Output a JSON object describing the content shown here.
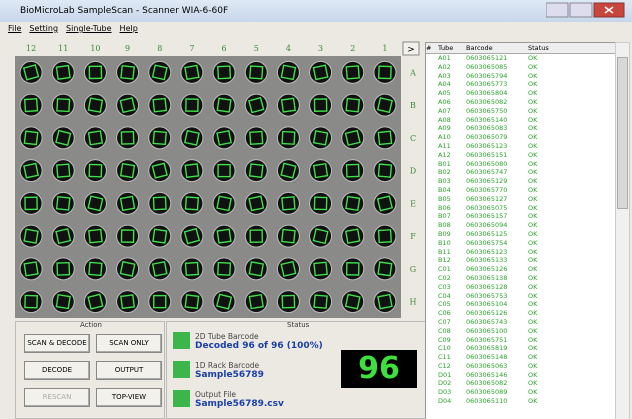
{
  "window": {
    "title": "BioMicroLab SampleScan - Scanner WIA-6-60F",
    "menu": [
      "File",
      "Setting",
      "Single-Tube",
      "Help"
    ]
  },
  "rack": {
    "columns": [
      "12",
      "11",
      "10",
      "9",
      "8",
      "7",
      "6",
      "5",
      "4",
      "3",
      "2",
      "1"
    ],
    "rows": [
      "A",
      "B",
      "C",
      "D",
      "E",
      "F",
      "G",
      "H"
    ],
    "next_button": ">"
  },
  "action": {
    "title": "Action",
    "buttons": [
      {
        "label": "SCAN & DECODE"
      },
      {
        "label": "SCAN ONLY"
      },
      {
        "label": "DECODE"
      },
      {
        "label": "OUTPUT"
      },
      {
        "label": "RESCAN",
        "disabled": true
      },
      {
        "label": "TOP-VIEW"
      }
    ]
  },
  "status": {
    "title": "Status",
    "items": [
      {
        "label": "2D Tube Barcode",
        "value": "Decoded 96 of 96 (100%)"
      },
      {
        "label": "1D Rack Barcode",
        "value": "Sample56789"
      },
      {
        "label": "Output File",
        "value": "Sample56789.csv"
      }
    ],
    "count": "96"
  },
  "table": {
    "headers": [
      "#",
      "Tube",
      "Barcode",
      "Status"
    ],
    "rows": [
      [
        "A01",
        "0603065121",
        "OK"
      ],
      [
        "A02",
        "0603065085",
        "OK"
      ],
      [
        "A03",
        "0603065794",
        "OK"
      ],
      [
        "A04",
        "0603065773",
        "OK"
      ],
      [
        "A05",
        "0603065804",
        "OK"
      ],
      [
        "A06",
        "0603065082",
        "OK"
      ],
      [
        "A07",
        "0603065750",
        "OK"
      ],
      [
        "A08",
        "0603065140",
        "OK"
      ],
      [
        "A09",
        "0603065083",
        "OK"
      ],
      [
        "A10",
        "0603065079",
        "OK"
      ],
      [
        "A11",
        "0603065123",
        "OK"
      ],
      [
        "A12",
        "0603065151",
        "OK"
      ],
      [
        "B01",
        "0603065080",
        "OK"
      ],
      [
        "B02",
        "0603065747",
        "OK"
      ],
      [
        "B03",
        "0603065129",
        "OK"
      ],
      [
        "B04",
        "0603065770",
        "OK"
      ],
      [
        "B05",
        "0603065127",
        "OK"
      ],
      [
        "B06",
        "0603065075",
        "OK"
      ],
      [
        "B07",
        "0603065157",
        "OK"
      ],
      [
        "B08",
        "0603065094",
        "OK"
      ],
      [
        "B09",
        "0603065125",
        "OK"
      ],
      [
        "B10",
        "0603065754",
        "OK"
      ],
      [
        "B11",
        "0603065123",
        "OK"
      ],
      [
        "B12",
        "0603065133",
        "OK"
      ],
      [
        "C01",
        "0603065126",
        "OK"
      ],
      [
        "C02",
        "0603065138",
        "OK"
      ],
      [
        "C03",
        "0603065128",
        "OK"
      ],
      [
        "C04",
        "0603065753",
        "OK"
      ],
      [
        "C05",
        "0603065104",
        "OK"
      ],
      [
        "C06",
        "0603065126",
        "OK"
      ],
      [
        "C07",
        "0603065743",
        "OK"
      ],
      [
        "C08",
        "0603065100",
        "OK"
      ],
      [
        "C09",
        "0603065751",
        "OK"
      ],
      [
        "C10",
        "0603065819",
        "OK"
      ],
      [
        "C11",
        "0603065148",
        "OK"
      ],
      [
        "C12",
        "0603065063",
        "OK"
      ],
      [
        "D01",
        "0603065146",
        "OK"
      ],
      [
        "D02",
        "0603065082",
        "OK"
      ],
      [
        "D03",
        "0603065089",
        "OK"
      ],
      [
        "D04",
        "0603065110",
        "OK"
      ]
    ]
  }
}
